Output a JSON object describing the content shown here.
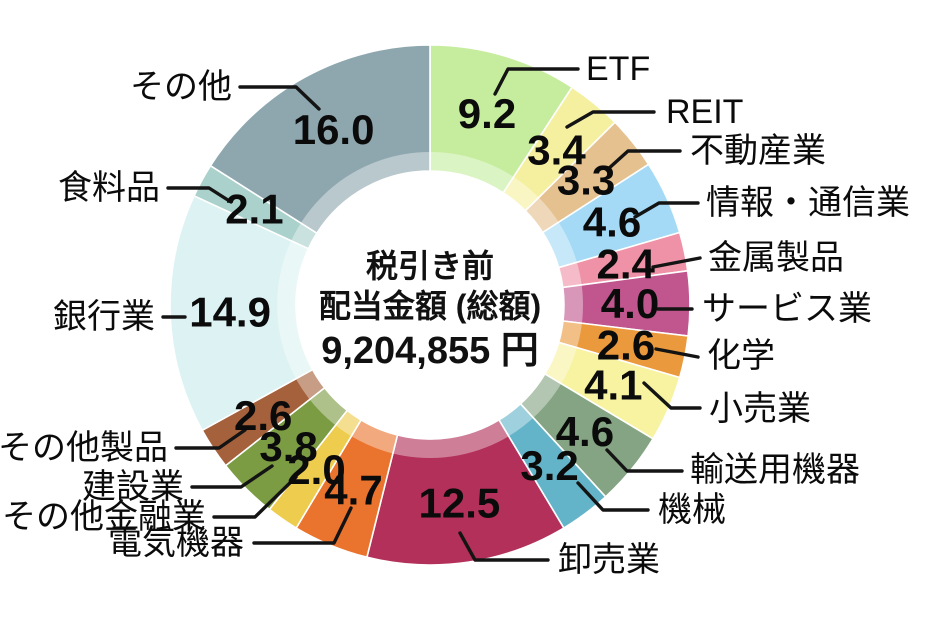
{
  "chart_data": {
    "type": "donut",
    "title": "税引き前 配当金額 (総額)",
    "center_lines": [
      "税引き前",
      "配当金額 (総額)",
      "9,204,855 円"
    ],
    "total_amount_text": "9,204,855 円",
    "unit": "percent share",
    "start_angle_deg": -90,
    "direction": "clockwise",
    "legend_position": "callout-labels",
    "segments": [
      {
        "label": "ETF",
        "value": 9.2,
        "color": "#c6ed9e"
      },
      {
        "label": "REIT",
        "value": 3.4,
        "color": "#f5f0a0"
      },
      {
        "label": "不動産業",
        "value": 3.3,
        "color": "#e6c190"
      },
      {
        "label": "情報・通信業",
        "value": 4.6,
        "color": "#a4daf6"
      },
      {
        "label": "金属製品",
        "value": 2.4,
        "color": "#ef92a7"
      },
      {
        "label": "サービス業",
        "value": 4.0,
        "color": "#c1568e"
      },
      {
        "label": "化学",
        "value": 2.6,
        "color": "#ea9a3d"
      },
      {
        "label": "小売業",
        "value": 4.1,
        "color": "#f7f3a1"
      },
      {
        "label": "輸送用機器",
        "value": 4.6,
        "color": "#84a483"
      },
      {
        "label": "機械",
        "value": 3.2,
        "color": "#64b4c9"
      },
      {
        "label": "卸売業",
        "value": 12.5,
        "color": "#b23059"
      },
      {
        "label": "電気機器",
        "value": 4.7,
        "color": "#ea742e"
      },
      {
        "label": "その他金融業",
        "value": 2.0,
        "color": "#edcc4e"
      },
      {
        "label": "建設業",
        "value": 3.8,
        "color": "#7c9c43"
      },
      {
        "label": "その他製品",
        "value": 2.6,
        "color": "#a5613b"
      },
      {
        "label": "銀行業",
        "value": 14.9,
        "color": "#dcf2f3"
      },
      {
        "label": "食料品",
        "value": 2.1,
        "color": "#aad1cb"
      },
      {
        "label": "その他",
        "value": 16.0,
        "color": "#8ea7af"
      }
    ]
  }
}
